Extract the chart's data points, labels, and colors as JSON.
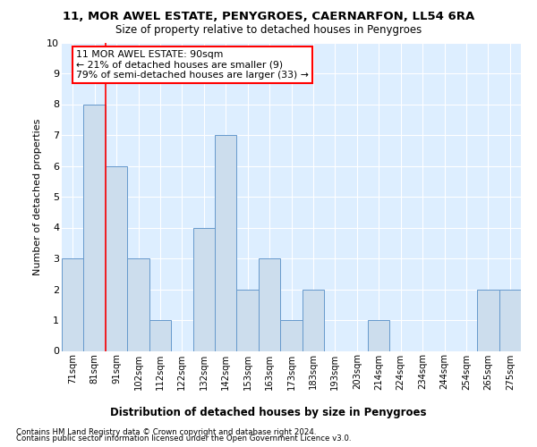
{
  "title": "11, MOR AWEL ESTATE, PENYGROES, CAERNARFON, LL54 6RA",
  "subtitle": "Size of property relative to detached houses in Penygroes",
  "xlabel": "Distribution of detached houses by size in Penygroes",
  "ylabel": "Number of detached properties",
  "categories": [
    "71sqm",
    "81sqm",
    "91sqm",
    "102sqm",
    "112sqm",
    "122sqm",
    "132sqm",
    "142sqm",
    "153sqm",
    "163sqm",
    "173sqm",
    "183sqm",
    "193sqm",
    "203sqm",
    "214sqm",
    "224sqm",
    "234sqm",
    "244sqm",
    "254sqm",
    "265sqm",
    "275sqm"
  ],
  "values": [
    3,
    8,
    6,
    3,
    1,
    0,
    4,
    7,
    2,
    3,
    1,
    2,
    0,
    0,
    1,
    0,
    0,
    0,
    0,
    2,
    2
  ],
  "bar_color": "#ccdded",
  "bar_edge_color": "#6699cc",
  "vline_x": 1.5,
  "annotation_text": "11 MOR AWEL ESTATE: 90sqm\n← 21% of detached houses are smaller (9)\n79% of semi-detached houses are larger (33) →",
  "footer1": "Contains HM Land Registry data © Crown copyright and database right 2024.",
  "footer2": "Contains public sector information licensed under the Open Government Licence v3.0.",
  "ylim": [
    0,
    10
  ],
  "background_color": "#ddeeff"
}
